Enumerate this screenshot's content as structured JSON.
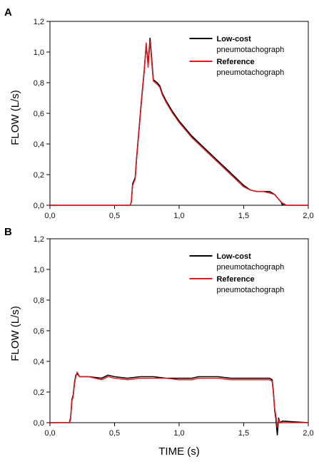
{
  "figure": {
    "ylabel": "FLOW (L/s)",
    "xlabel": "TIME (s)"
  },
  "chart_data": [
    {
      "type": "line",
      "panel_label": "A",
      "xlim": [
        0,
        2.0
      ],
      "ylim": [
        0,
        1.2
      ],
      "x_ticks": [
        "0,0",
        "0,5",
        "1,0",
        "1,5",
        "2,0"
      ],
      "y_ticks": [
        "0,0",
        "0,2",
        "0,4",
        "0,6",
        "0,8",
        "1,0",
        "1,2"
      ],
      "ylabel": "FLOW (L/s)",
      "legend_position": "top-right",
      "legend": [
        {
          "bold": "Low-cost",
          "plain": "pneumotachograph",
          "color": "#000000"
        },
        {
          "bold": "Reference",
          "plain": "pneumotachograph",
          "color": "#e8161b"
        }
      ],
      "series": [
        {
          "name": "Low-cost pneumotachograph",
          "color": "#000000",
          "points": [
            [
              0,
              0
            ],
            [
              0.62,
              0
            ],
            [
              0.63,
              0.02
            ],
            [
              0.64,
              0.14
            ],
            [
              0.66,
              0.18
            ],
            [
              0.67,
              0.3
            ],
            [
              0.69,
              0.5
            ],
            [
              0.71,
              0.7
            ],
            [
              0.73,
              0.88
            ],
            [
              0.745,
              1.05
            ],
            [
              0.76,
              0.92
            ],
            [
              0.775,
              1.09
            ],
            [
              0.79,
              0.93
            ],
            [
              0.8,
              0.82
            ],
            [
              0.83,
              0.8
            ],
            [
              0.85,
              0.78
            ],
            [
              0.87,
              0.73
            ],
            [
              0.9,
              0.68
            ],
            [
              0.95,
              0.61
            ],
            [
              1.0,
              0.55
            ],
            [
              1.05,
              0.5
            ],
            [
              1.1,
              0.45
            ],
            [
              1.15,
              0.41
            ],
            [
              1.2,
              0.37
            ],
            [
              1.25,
              0.33
            ],
            [
              1.3,
              0.29
            ],
            [
              1.35,
              0.25
            ],
            [
              1.4,
              0.21
            ],
            [
              1.45,
              0.17
            ],
            [
              1.5,
              0.13
            ],
            [
              1.55,
              0.1
            ],
            [
              1.6,
              0.09
            ],
            [
              1.65,
              0.09
            ],
            [
              1.7,
              0.09
            ],
            [
              1.74,
              0.07
            ],
            [
              1.77,
              0.04
            ],
            [
              1.79,
              0.02
            ],
            [
              1.8,
              0
            ],
            [
              1.81,
              0.01
            ],
            [
              1.83,
              0
            ],
            [
              2.0,
              0
            ]
          ]
        },
        {
          "name": "Reference pneumotachograph",
          "color": "#e8161b",
          "points": [
            [
              0,
              0
            ],
            [
              0.62,
              0
            ],
            [
              0.63,
              0.02
            ],
            [
              0.64,
              0.13
            ],
            [
              0.66,
              0.17
            ],
            [
              0.67,
              0.29
            ],
            [
              0.69,
              0.49
            ],
            [
              0.71,
              0.69
            ],
            [
              0.73,
              0.87
            ],
            [
              0.745,
              1.06
            ],
            [
              0.76,
              0.9
            ],
            [
              0.775,
              1.07
            ],
            [
              0.79,
              0.91
            ],
            [
              0.8,
              0.81
            ],
            [
              0.83,
              0.79
            ],
            [
              0.85,
              0.77
            ],
            [
              0.87,
              0.72
            ],
            [
              0.9,
              0.67
            ],
            [
              0.95,
              0.6
            ],
            [
              1.0,
              0.54
            ],
            [
              1.05,
              0.49
            ],
            [
              1.1,
              0.44
            ],
            [
              1.15,
              0.4
            ],
            [
              1.2,
              0.36
            ],
            [
              1.25,
              0.32
            ],
            [
              1.3,
              0.28
            ],
            [
              1.35,
              0.24
            ],
            [
              1.4,
              0.2
            ],
            [
              1.45,
              0.16
            ],
            [
              1.5,
              0.12
            ],
            [
              1.55,
              0.1
            ],
            [
              1.6,
              0.09
            ],
            [
              1.65,
              0.09
            ],
            [
              1.7,
              0.08
            ],
            [
              1.74,
              0.07
            ],
            [
              1.77,
              0.04
            ],
            [
              1.79,
              0.02
            ],
            [
              1.81,
              0.01
            ],
            [
              1.83,
              0
            ],
            [
              2.0,
              0
            ]
          ]
        }
      ]
    },
    {
      "type": "line",
      "panel_label": "B",
      "xlim": [
        0,
        2.0
      ],
      "ylim": [
        0,
        1.2
      ],
      "x_ticks": [
        "0,0",
        "0,5",
        "1,0",
        "1,5",
        "2,0"
      ],
      "y_ticks": [
        "0,0",
        "0,2",
        "0,4",
        "0,6",
        "0,8",
        "1,0",
        "1,2"
      ],
      "ylabel": "FLOW (L/s)",
      "xlabel": "TIME (s)",
      "legend_position": "top-right",
      "legend": [
        {
          "bold": "Low-cost",
          "plain": "pneumotachograph",
          "color": "#000000"
        },
        {
          "bold": "Reference",
          "plain": "pneumotachograph",
          "color": "#e8161b"
        }
      ],
      "series": [
        {
          "name": "Low-cost pneumotachograph",
          "color": "#000000",
          "points": [
            [
              0,
              0
            ],
            [
              0.15,
              0
            ],
            [
              0.16,
              0.03
            ],
            [
              0.17,
              0.15
            ],
            [
              0.18,
              0.18
            ],
            [
              0.19,
              0.26
            ],
            [
              0.2,
              0.31
            ],
            [
              0.21,
              0.32
            ],
            [
              0.23,
              0.3
            ],
            [
              0.3,
              0.3
            ],
            [
              0.4,
              0.29
            ],
            [
              0.45,
              0.31
            ],
            [
              0.5,
              0.3
            ],
            [
              0.6,
              0.29
            ],
            [
              0.7,
              0.3
            ],
            [
              0.8,
              0.3
            ],
            [
              0.9,
              0.29
            ],
            [
              1.0,
              0.29
            ],
            [
              1.1,
              0.29
            ],
            [
              1.15,
              0.3
            ],
            [
              1.2,
              0.3
            ],
            [
              1.3,
              0.3
            ],
            [
              1.4,
              0.29
            ],
            [
              1.5,
              0.29
            ],
            [
              1.6,
              0.29
            ],
            [
              1.7,
              0.29
            ],
            [
              1.72,
              0.28
            ],
            [
              1.73,
              0.2
            ],
            [
              1.74,
              0.08
            ],
            [
              1.75,
              0.02
            ],
            [
              1.76,
              -0.08
            ],
            [
              1.77,
              0.03
            ],
            [
              1.78,
              0
            ],
            [
              1.8,
              0.01
            ],
            [
              2.0,
              0
            ]
          ]
        },
        {
          "name": "Reference pneumotachograph",
          "color": "#e8161b",
          "points": [
            [
              0,
              0
            ],
            [
              0.15,
              0
            ],
            [
              0.16,
              0.02
            ],
            [
              0.17,
              0.14
            ],
            [
              0.18,
              0.17
            ],
            [
              0.19,
              0.25
            ],
            [
              0.2,
              0.3
            ],
            [
              0.21,
              0.33
            ],
            [
              0.23,
              0.3
            ],
            [
              0.3,
              0.3
            ],
            [
              0.4,
              0.28
            ],
            [
              0.45,
              0.3
            ],
            [
              0.5,
              0.29
            ],
            [
              0.6,
              0.28
            ],
            [
              0.7,
              0.29
            ],
            [
              0.8,
              0.29
            ],
            [
              0.9,
              0.29
            ],
            [
              1.0,
              0.28
            ],
            [
              1.1,
              0.28
            ],
            [
              1.15,
              0.29
            ],
            [
              1.2,
              0.29
            ],
            [
              1.3,
              0.29
            ],
            [
              1.4,
              0.28
            ],
            [
              1.5,
              0.28
            ],
            [
              1.6,
              0.28
            ],
            [
              1.7,
              0.28
            ],
            [
              1.72,
              0.27
            ],
            [
              1.73,
              0.19
            ],
            [
              1.74,
              0.09
            ],
            [
              1.75,
              0.04
            ],
            [
              1.76,
              -0.03
            ],
            [
              1.77,
              0.02
            ],
            [
              1.78,
              0
            ],
            [
              2.0,
              0
            ]
          ]
        }
      ]
    }
  ]
}
